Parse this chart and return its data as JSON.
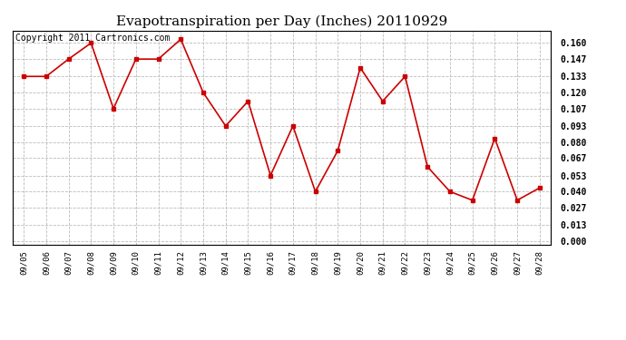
{
  "title": "Evapotranspiration per Day (Inches) 20110929",
  "copyright_text": "Copyright 2011 Cartronics.com",
  "dates": [
    "09/05",
    "09/06",
    "09/07",
    "09/08",
    "09/09",
    "09/10",
    "09/11",
    "09/12",
    "09/13",
    "09/14",
    "09/15",
    "09/16",
    "09/17",
    "09/18",
    "09/19",
    "09/20",
    "09/21",
    "09/22",
    "09/23",
    "09/24",
    "09/25",
    "09/26",
    "09/27",
    "09/28"
  ],
  "values": [
    0.133,
    0.133,
    0.147,
    0.16,
    0.107,
    0.147,
    0.147,
    0.163,
    0.12,
    0.093,
    0.113,
    0.053,
    0.093,
    0.04,
    0.073,
    0.14,
    0.113,
    0.133,
    0.06,
    0.04,
    0.033,
    0.083,
    0.033,
    0.043
  ],
  "line_color": "#cc0000",
  "marker_color": "#cc0000",
  "background_color": "#ffffff",
  "grid_color": "#bbbbbb",
  "yticks": [
    0.0,
    0.013,
    0.027,
    0.04,
    0.053,
    0.067,
    0.08,
    0.093,
    0.107,
    0.12,
    0.133,
    0.147,
    0.16
  ],
  "ylim": [
    -0.003,
    0.17
  ],
  "title_fontsize": 11,
  "copyright_fontsize": 7
}
